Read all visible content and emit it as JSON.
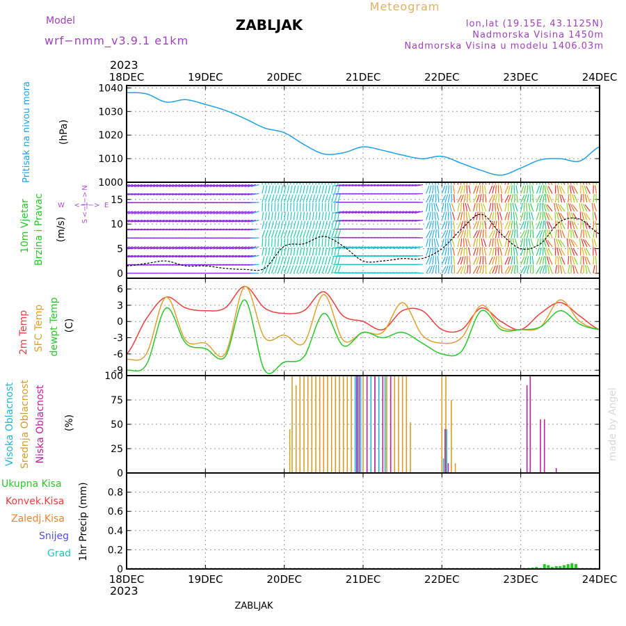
{
  "header": {
    "model_label": "Model",
    "model_name": "wrf−nmm_v3.9.1  e1km",
    "title": "ZABLJAK",
    "meteogram_label": "Meteogram",
    "coords": "lon,lat (19.15E, 43.1125N)",
    "altitude": "Nadmorska Visina 1450m",
    "model_altitude": "Nadmorska Visina u modelu 1406.03m",
    "year_top": "2023",
    "year_bottom": "2023",
    "footer_title": "ZABLJAK",
    "credit": "made by Angel"
  },
  "colors": {
    "pressure": "#1ea0e6",
    "temp2m": "#f03c3c",
    "sfc": "#e0a030",
    "dewpt": "#28c828",
    "high_cloud": "#20b4d8",
    "mid_cloud": "#d89c28",
    "low_cloud": "#c020a0",
    "total_precip": "#28c828",
    "conv_precip": "#f03c3c",
    "frz_precip": "#f08228",
    "snow": "#5050e0",
    "hail": "#20c8b4",
    "grid": "#9a9a9a",
    "model_label": "#a040c0"
  },
  "chart_data": [
    {
      "id": "pressure",
      "type": "line",
      "x_ticks": [
        "18DEC",
        "19DEC",
        "20DEC",
        "21DEC",
        "22DEC",
        "23DEC",
        "24DEC"
      ],
      "ylabel_1": "Pritisak na nivou mora",
      "ylabel_2": "(hPa)",
      "ylim": [
        1000,
        1041
      ],
      "y_ticks": [
        1000,
        1010,
        1020,
        1030,
        1040
      ],
      "x": [
        0,
        0.25,
        0.5,
        0.75,
        1.0,
        1.25,
        1.5,
        1.75,
        2.0,
        2.25,
        2.5,
        2.75,
        3.0,
        3.25,
        3.5,
        3.75,
        4.0,
        4.25,
        4.5,
        4.75,
        5.0,
        5.25,
        5.5,
        5.75,
        6.0
      ],
      "values": [
        1038,
        1037.5,
        1034,
        1035,
        1033,
        1030.5,
        1027,
        1023,
        1021,
        1016,
        1012,
        1012.5,
        1015,
        1013.5,
        1011.5,
        1010,
        1011,
        1008,
        1005,
        1003,
        1006,
        1009.5,
        1010,
        1009,
        1015
      ],
      "grid": true
    },
    {
      "id": "wind",
      "type": "line",
      "x_ticks": [
        "18DEC",
        "19DEC",
        "20DEC",
        "21DEC",
        "22DEC",
        "23DEC",
        "24DEC"
      ],
      "ylabel_1": "10m Vjetar",
      "ylabel_2": "Brzina i Pravac",
      "ylabel_3": "(m/s)",
      "compass_n": "N",
      "compass_s": "S",
      "compass_w": "W",
      "compass_e": "E",
      "compass_arrows": "<−|−>",
      "ylim": [
        -1,
        18.5
      ],
      "y_ticks": [
        0,
        5,
        10,
        15
      ],
      "x": [
        0,
        0.25,
        0.5,
        0.75,
        1.0,
        1.25,
        1.5,
        1.75,
        2.0,
        2.25,
        2.5,
        2.75,
        3.0,
        3.25,
        3.5,
        3.75,
        4.0,
        4.25,
        4.5,
        4.75,
        5.0,
        5.25,
        5.5,
        5.75,
        6.0
      ],
      "values": [
        1.5,
        2,
        2.5,
        1.5,
        1.5,
        1,
        0.8,
        1,
        5.5,
        6,
        7.5,
        5.5,
        2.5,
        2.5,
        3,
        3,
        5,
        9,
        12,
        8,
        5,
        6,
        10.5,
        11,
        8
      ],
      "grid": true
    },
    {
      "id": "temperature",
      "type": "line",
      "x_ticks": [
        "18DEC",
        "19DEC",
        "20DEC",
        "21DEC",
        "22DEC",
        "23DEC",
        "24DEC"
      ],
      "ylabel_1": "2m Temp",
      "ylabel_2": "SFC Temp",
      "ylabel_3": "dewpt Temp",
      "ylabel_4": "(C)",
      "ylim": [
        -10,
        8
      ],
      "y_ticks": [
        -9,
        -6,
        -3,
        0,
        3,
        6
      ],
      "x": [
        0,
        0.25,
        0.5,
        0.75,
        1.0,
        1.25,
        1.5,
        1.75,
        2.0,
        2.25,
        2.5,
        2.75,
        3.0,
        3.25,
        3.5,
        3.75,
        4.0,
        4.25,
        4.5,
        4.75,
        5.0,
        5.25,
        5.5,
        5.75,
        6.0
      ],
      "series": [
        {
          "name": "2m Temp",
          "values": [
            -6,
            0.5,
            4.5,
            2.5,
            2,
            2.5,
            6.5,
            2.5,
            1.5,
            2,
            5.5,
            1,
            0,
            -1.5,
            2,
            2,
            -1.5,
            -1.5,
            2.5,
            0,
            -1.5,
            1.5,
            3.5,
            1,
            -1.5
          ]
        },
        {
          "name": "SFC Temp",
          "values": [
            -7,
            -6,
            4.5,
            -3.5,
            -4,
            -6,
            6.5,
            -3,
            -2.5,
            -4,
            5,
            -3.5,
            -2,
            -2,
            3.5,
            -2.5,
            -4,
            -3,
            3,
            -1,
            -1.5,
            -1,
            4,
            0,
            -1.5
          ]
        },
        {
          "name": "dewpt Temp",
          "values": [
            -9,
            -8,
            2.5,
            -4,
            -5,
            -6.5,
            4,
            -9,
            -7.5,
            -6.5,
            1.5,
            -4.5,
            -2,
            -3,
            -2,
            -4,
            -6,
            -5.5,
            2,
            -1.5,
            -1.5,
            -1,
            2,
            -0.5,
            -1.5
          ]
        }
      ],
      "grid": true
    },
    {
      "id": "clouds",
      "type": "bar",
      "x_ticks": [
        "18DEC",
        "19DEC",
        "20DEC",
        "21DEC",
        "22DEC",
        "23DEC",
        "24DEC"
      ],
      "ylabel_1": "Visoka Oblacnost",
      "ylabel_2": "Srednja Oblacnost",
      "ylabel_3": "Niska Oblacnost",
      "ylabel_4": "(%)",
      "ylim": [
        0,
        100
      ],
      "y_ticks": [
        0,
        25,
        50,
        75,
        100
      ],
      "series": [
        {
          "name": "Srednja Oblacnost",
          "x": [
            2.07,
            2.1,
            2.15,
            2.2,
            2.25,
            2.3,
            2.35,
            2.4,
            2.45,
            2.5,
            2.55,
            2.6,
            2.65,
            2.7,
            2.75,
            2.8,
            2.85,
            2.9,
            2.95,
            3.0,
            3.05,
            3.1,
            3.15,
            3.2,
            3.25,
            3.3,
            3.35,
            3.4,
            3.45,
            3.5,
            3.55,
            3.6,
            4.0,
            4.05,
            4.12,
            4.17
          ],
          "values": [
            45,
            100,
            90,
            100,
            100,
            100,
            100,
            100,
            100,
            100,
            100,
            100,
            100,
            100,
            100,
            100,
            100,
            100,
            100,
            100,
            100,
            100,
            100,
            100,
            100,
            100,
            100,
            100,
            100,
            100,
            100,
            52,
            100,
            100,
            75,
            10
          ]
        },
        {
          "name": "Visoka Oblacnost",
          "x": [
            2.9,
            2.93,
            2.97,
            3.1,
            3.2,
            3.28,
            4.02,
            4.06
          ],
          "values": [
            100,
            100,
            100,
            100,
            100,
            100,
            15,
            45
          ]
        },
        {
          "name": "Niska Oblacnost",
          "x": [
            2.92,
            2.95,
            3.05,
            3.15,
            3.25,
            3.35,
            4.04,
            4.08,
            5.08,
            5.12,
            5.25,
            5.3,
            5.45
          ],
          "values": [
            100,
            100,
            100,
            100,
            100,
            100,
            45,
            10,
            90,
            100,
            55,
            55,
            5
          ]
        }
      ],
      "grid": true
    },
    {
      "id": "precip",
      "type": "bar",
      "x_ticks": [
        "18DEC",
        "19DEC",
        "20DEC",
        "21DEC",
        "22DEC",
        "23DEC",
        "24DEC"
      ],
      "ylabel_1": "1hr Precip (mm)",
      "legend": [
        "Ukupna Kisa",
        "Konvek.Kisa",
        "Zaledj.Kisa",
        "Snijeg",
        "Grad"
      ],
      "ylim": [
        0,
        1.0
      ],
      "y_ticks": [
        0,
        0.2,
        0.4,
        0.6,
        0.8
      ],
      "x": [
        5.1,
        5.15,
        5.2,
        5.25,
        5.3,
        5.35,
        5.4,
        5.45,
        5.5,
        5.55,
        5.6,
        5.65,
        5.7
      ],
      "values": [
        0.01,
        0.015,
        0.02,
        0.01,
        0.05,
        0.04,
        0.02,
        0.03,
        0.03,
        0.04,
        0.05,
        0.06,
        0.05
      ],
      "grid": true
    }
  ]
}
